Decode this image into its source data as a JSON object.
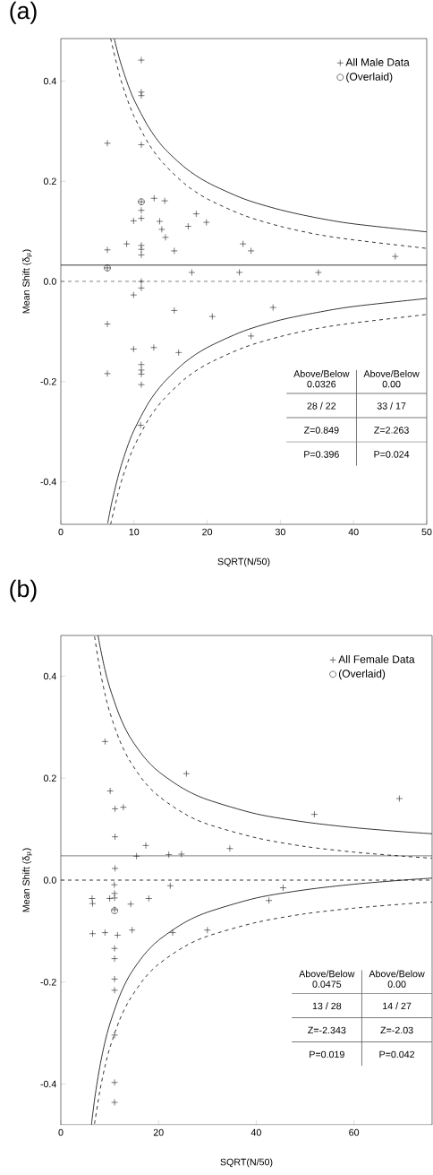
{
  "chart_data": [
    {
      "type": "scatter",
      "title": "(a)",
      "xlabel": "SQRT(N/50)",
      "ylabel": "Mean Shift (δ$_{μ}$)",
      "xlim": [
        0,
        50
      ],
      "ylim": [
        -0.485,
        0.485
      ],
      "xticks": [
        0,
        10,
        20,
        30,
        40,
        50
      ],
      "yticks": [
        -0.4,
        -0.2,
        {
          "value": 0,
          "label": "0.0"
        },
        0.2,
        0.4
      ],
      "legend": "top right",
      "ref_lines": [
        {
          "axis": "y",
          "value": 0.0326,
          "line_style": "solid",
          "color": "#000000"
        },
        {
          "axis": "y",
          "value": 0,
          "line_style": "dashed",
          "color": "#000000"
        }
      ],
      "annotations": [
        "Above/Below",
        "0.0326",
        "Above/Below",
        "0.00",
        "28 / 22",
        "33 / 17",
        "Z=0.849",
        "Z=2.263",
        "P=0.396",
        "P=0.024"
      ],
      "series": [
        {
          "name": "All Male Data",
          "type": "scatter",
          "marker": "cross",
          "color": "#000000",
          "x": [
            11.0,
            11.0,
            11.0,
            6.36,
            11.0,
            11.0,
            11.0,
            11.0,
            12.75,
            14.2,
            9.94,
            13.5,
            13.8,
            14.3,
            18.5,
            19.9,
            17.4,
            9.0,
            11.0,
            11.0,
            11.0,
            6.36,
            15.5,
            24.9,
            26.0,
            45.7,
            6.36,
            17.9,
            24.4,
            35.2,
            11.0,
            11.0,
            9.94,
            15.5,
            20.7,
            29.0,
            6.36,
            26.0,
            9.94,
            12.7,
            16.1,
            6.36,
            11.0,
            11.0,
            11.0,
            11.0,
            10.9
          ],
          "values": [
            0.442,
            0.378,
            0.371,
            0.276,
            0.273,
            0.159,
            0.142,
            0.126,
            0.166,
            0.161,
            0.121,
            0.12,
            0.104,
            0.088,
            0.135,
            0.118,
            0.11,
            0.075,
            0.072,
            0.064,
            0.053,
            0.063,
            0.061,
            0.075,
            0.061,
            0.05,
            0.027,
            0.018,
            0.018,
            0.018,
            0.0,
            -0.013,
            -0.027,
            -0.058,
            -0.07,
            -0.052,
            -0.085,
            -0.109,
            -0.135,
            -0.132,
            -0.142,
            -0.184,
            -0.166,
            -0.177,
            -0.185,
            -0.206,
            -0.287
          ]
        },
        {
          "name": "(Overlaid)",
          "type": "scatter",
          "marker": "circle",
          "color": "#000000",
          "x": [
            11.0,
            6.36
          ],
          "values": [
            0.159,
            0.027
          ]
        },
        {
          "type": "line",
          "line_style": "solid",
          "color": "#000000",
          "x": [
            7.3,
            8,
            9,
            10,
            12,
            14,
            17,
            20,
            25,
            30,
            35,
            40,
            50
          ],
          "values": [
            0.485,
            0.445,
            0.4,
            0.363,
            0.308,
            0.268,
            0.227,
            0.198,
            0.165,
            0.143,
            0.127,
            0.115,
            0.099
          ]
        },
        {
          "type": "line",
          "line_style": "dashed",
          "color": "#000000",
          "x": [
            6.8,
            8,
            9,
            10,
            12,
            14,
            17,
            20,
            25,
            30,
            35,
            40,
            50
          ],
          "values": [
            0.485,
            0.413,
            0.367,
            0.33,
            0.275,
            0.236,
            0.194,
            0.165,
            0.132,
            0.11,
            0.094,
            0.083,
            0.066
          ]
        },
        {
          "type": "line",
          "line_style": "solid",
          "color": "#000000",
          "x": [
            6.4,
            7,
            8,
            9,
            10,
            12,
            14,
            17,
            20,
            25,
            30,
            35,
            40,
            50
          ],
          "values": [
            -0.483,
            -0.439,
            -0.38,
            -0.334,
            -0.297,
            -0.242,
            -0.203,
            -0.161,
            -0.132,
            -0.099,
            -0.077,
            -0.062,
            -0.05,
            -0.034
          ]
        },
        {
          "type": "line",
          "line_style": "dashed",
          "color": "#000000",
          "x": [
            6.8,
            8,
            9,
            10,
            12,
            14,
            17,
            20,
            25,
            30,
            35,
            40,
            50
          ],
          "values": [
            -0.485,
            -0.413,
            -0.367,
            -0.33,
            -0.275,
            -0.236,
            -0.194,
            -0.165,
            -0.132,
            -0.11,
            -0.094,
            -0.083,
            -0.066
          ]
        }
      ]
    },
    {
      "type": "scatter",
      "title": "(b)",
      "xlabel": "SQRT(N/50)",
      "ylabel": "Mean Shift (δ$_{μ}$)",
      "xlim": [
        0,
        76
      ],
      "ylim": [
        -0.48,
        0.48
      ],
      "xticks": [
        0,
        20,
        40,
        60
      ],
      "yticks": [
        -0.4,
        -0.2,
        {
          "value": 0,
          "label": "0.0"
        },
        0.2,
        0.4
      ],
      "legend": "top right",
      "ref_lines": [
        {
          "axis": "y",
          "value": 0.0475,
          "line_style": "solid",
          "color": "#000000"
        },
        {
          "axis": "y",
          "value": 0,
          "line_style": "dashed",
          "color": "#000000"
        }
      ],
      "annotations": [
        "Above/Below",
        "0.0475",
        "Above/Below",
        "0.00",
        "13 / 28",
        "14 / 27",
        "Z=-2.343",
        "Z=-2.03",
        "P=0.019",
        "P=0.042"
      ],
      "series": [
        {
          "name": "All Female Data",
          "type": "scatter",
          "marker": "cross",
          "color": "#000000",
          "x": [
            9.05,
            25.7,
            10.1,
            11.1,
            12.8,
            51.9,
            69.3,
            11.1,
            17.4,
            34.6,
            15.5,
            22.1,
            24.7,
            11.1,
            10.95,
            22.4,
            45.5,
            42.6,
            11.0,
            11.0,
            6.4,
            6.5,
            10.0,
            14.3,
            18.0,
            11.0,
            6.5,
            9.05,
            11.6,
            14.6,
            22.9,
            30.0,
            11.0,
            11.0,
            11.0,
            11.0,
            11.0,
            11.0,
            11.0
          ],
          "values": [
            0.272,
            0.209,
            0.175,
            0.14,
            0.143,
            0.129,
            0.16,
            0.085,
            0.068,
            0.062,
            0.047,
            0.05,
            0.051,
            0.023,
            -0.009,
            -0.011,
            -0.015,
            -0.04,
            -0.026,
            -0.035,
            -0.036,
            -0.046,
            -0.036,
            -0.047,
            -0.036,
            -0.058,
            -0.105,
            -0.103,
            -0.108,
            -0.098,
            -0.103,
            -0.098,
            -0.134,
            -0.154,
            -0.194,
            -0.216,
            -0.304,
            -0.397,
            -0.436
          ]
        },
        {
          "name": "(Overlaid)",
          "type": "scatter",
          "marker": "circle",
          "color": "#000000",
          "x": [
            11.0
          ],
          "values": [
            -0.06
          ]
        },
        {
          "type": "line",
          "line_style": "solid",
          "color": "#000000",
          "x": [
            7.63,
            8,
            9,
            10,
            12,
            14,
            17,
            20,
            25,
            30,
            40,
            50,
            60,
            70,
            76
          ],
          "values": [
            0.48,
            0.46,
            0.414,
            0.378,
            0.323,
            0.283,
            0.242,
            0.213,
            0.18,
            0.158,
            0.13,
            0.114,
            0.103,
            0.095,
            0.091
          ]
        },
        {
          "type": "line",
          "line_style": "dashed",
          "color": "#000000",
          "x": [
            6.9,
            8,
            9,
            10,
            12,
            14,
            17,
            20,
            25,
            30,
            40,
            50,
            60,
            70,
            76
          ],
          "values": [
            0.478,
            0.413,
            0.367,
            0.33,
            0.275,
            0.236,
            0.194,
            0.165,
            0.132,
            0.11,
            0.083,
            0.066,
            0.055,
            0.047,
            0.043
          ]
        },
        {
          "type": "line",
          "line_style": "solid",
          "color": "#000000",
          "x": [
            6.26,
            7,
            8,
            9,
            10,
            12,
            14,
            17,
            20,
            25,
            30,
            40,
            50,
            60,
            70,
            76
          ],
          "values": [
            -0.48,
            -0.424,
            -0.365,
            -0.319,
            -0.283,
            -0.228,
            -0.188,
            -0.147,
            -0.118,
            -0.085,
            -0.063,
            -0.035,
            -0.019,
            -0.008,
            0.0,
            0.004
          ]
        },
        {
          "type": "line",
          "line_style": "dashed",
          "color": "#000000",
          "x": [
            6.9,
            8,
            9,
            10,
            12,
            14,
            17,
            20,
            25,
            30,
            40,
            50,
            60,
            70,
            76
          ],
          "values": [
            -0.478,
            -0.413,
            -0.367,
            -0.33,
            -0.275,
            -0.236,
            -0.194,
            -0.165,
            -0.132,
            -0.11,
            -0.083,
            -0.066,
            -0.055,
            -0.047,
            -0.043
          ]
        }
      ]
    }
  ]
}
